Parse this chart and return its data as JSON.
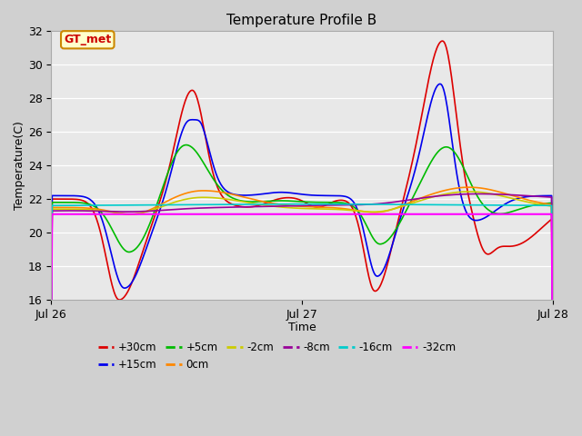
{
  "title": "Temperature Profile B",
  "xlabel": "Time",
  "ylabel": "Temperature(C)",
  "ylim": [
    16,
    32
  ],
  "fig_bg_color": "#d0d0d0",
  "plot_bg_color": "#e8e8e8",
  "annotation_text": "GT_met",
  "annotation_bg": "#ffffcc",
  "annotation_border": "#cc8800",
  "annotation_text_color": "#cc0000",
  "series": [
    {
      "label": "+30cm",
      "color": "#dd0000",
      "lw": 1.2
    },
    {
      "label": "+15cm",
      "color": "#0000ee",
      "lw": 1.2
    },
    {
      "label": "+5cm",
      "color": "#00bb00",
      "lw": 1.2
    },
    {
      "label": "0cm",
      "color": "#ff8800",
      "lw": 1.2
    },
    {
      "label": "-2cm",
      "color": "#cccc00",
      "lw": 1.2
    },
    {
      "label": "-8cm",
      "color": "#990099",
      "lw": 1.2
    },
    {
      "label": "-16cm",
      "color": "#00cccc",
      "lw": 1.2
    },
    {
      "label": "-32cm",
      "color": "#ff00ff",
      "lw": 1.5
    }
  ],
  "x_ticks": [
    0,
    288,
    576
  ],
  "x_tick_labels": [
    "Jul 26",
    "Jul 27",
    "Jul 28"
  ],
  "n_points": 577,
  "yticks": [
    16,
    18,
    20,
    22,
    24,
    26,
    28,
    30,
    32
  ]
}
